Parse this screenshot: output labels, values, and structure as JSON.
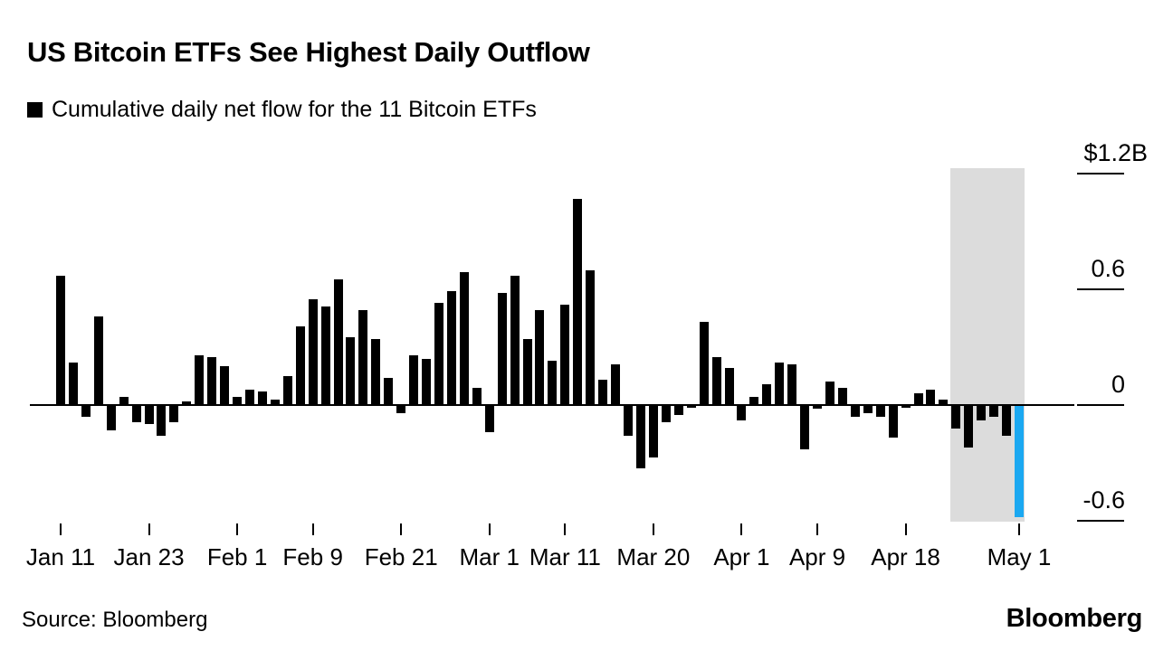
{
  "footer": {
    "source": "Source: Bloomberg",
    "brand": "Bloomberg"
  },
  "chart_data": {
    "type": "bar",
    "title": "US Bitcoin ETFs See Highest Daily Outflow",
    "series_label": "Cumulative daily net flow for the 11 Bitcoin ETFs",
    "unit": "$B",
    "grid": false,
    "y_axis_side": "right",
    "ylim": [
      -0.72,
      1.26
    ],
    "y_ticks": [
      {
        "value": 1.2,
        "label": "$1.2B"
      },
      {
        "value": 0.6,
        "label": "0.6"
      },
      {
        "value": 0,
        "label": "0"
      },
      {
        "value": -0.6,
        "label": "-0.6"
      }
    ],
    "x_ticks": [
      {
        "index": 0,
        "label": "Jan 11"
      },
      {
        "index": 7,
        "label": "Jan 23"
      },
      {
        "index": 14,
        "label": "Feb 1"
      },
      {
        "index": 20,
        "label": "Feb 9"
      },
      {
        "index": 27,
        "label": "Feb 21"
      },
      {
        "index": 34,
        "label": "Mar 1"
      },
      {
        "index": 40,
        "label": "Mar 11"
      },
      {
        "index": 47,
        "label": "Mar 20"
      },
      {
        "index": 54,
        "label": "Apr 1"
      },
      {
        "index": 60,
        "label": "Apr 9"
      },
      {
        "index": 67,
        "label": "Apr 18"
      },
      {
        "index": 76,
        "label": "May 1"
      }
    ],
    "values": [
      0.67,
      0.22,
      -0.06,
      0.46,
      -0.13,
      0.04,
      -0.09,
      -0.1,
      -0.16,
      -0.09,
      0.02,
      0.26,
      0.25,
      0.2,
      0.04,
      0.08,
      0.07,
      0.03,
      0.15,
      0.41,
      0.55,
      0.51,
      0.65,
      0.35,
      0.49,
      0.34,
      0.14,
      -0.04,
      0.26,
      0.24,
      0.53,
      0.59,
      0.69,
      0.09,
      -0.14,
      0.58,
      0.67,
      0.34,
      0.49,
      0.23,
      0.52,
      1.07,
      0.7,
      0.13,
      0.21,
      -0.16,
      -0.33,
      -0.27,
      -0.09,
      -0.05,
      -0.01,
      0.43,
      0.25,
      0.19,
      -0.08,
      0.04,
      0.11,
      0.22,
      0.21,
      -0.23,
      -0.02,
      0.12,
      0.09,
      -0.06,
      -0.04,
      -0.06,
      -0.17,
      -0.01,
      0.06,
      0.08,
      0.03,
      -0.12,
      -0.22,
      -0.08,
      -0.06,
      -0.16,
      -0.58
    ],
    "bar_color": "#000000",
    "last_bar_color": "#1ba8f1",
    "highlight": {
      "start_index": 71,
      "end_index": 76,
      "color": "#dcdcdc"
    }
  }
}
